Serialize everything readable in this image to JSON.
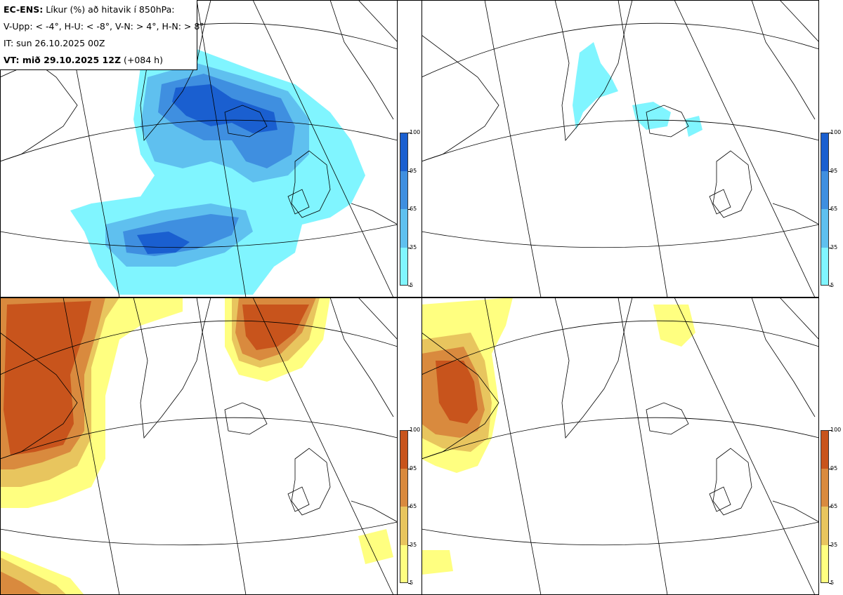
{
  "header": {
    "model": "EC-ENS:",
    "title": "Líkur (%) að hitavik í 850hPa:",
    "thresholds": "V-Upp: < -4°, H-U: < -8°, V-N: > 4°, H-N: > 8°",
    "init_time": "IT: sun 26.10.2025 00Z",
    "valid_label": "VT: mið 29.10.2025 12Z",
    "lead_time": "(+084 h)"
  },
  "colorbars": {
    "cold": {
      "labels": [
        "100",
        "95",
        "65",
        "35",
        "5"
      ],
      "colors": [
        "#1a5fd0",
        "#3f8fe0",
        "#5fc0ef",
        "#80f5ff"
      ]
    },
    "warm": {
      "labels": [
        "100",
        "95",
        "65",
        "35",
        "5"
      ],
      "colors": [
        "#c8541c",
        "#d98a3e",
        "#e8c55e",
        "#ffff80"
      ]
    }
  },
  "panels": [
    {
      "id": "top-left",
      "threshold": "V-Upp",
      "colorbar": "cold"
    },
    {
      "id": "top-right",
      "threshold": "H-U",
      "colorbar": "cold"
    },
    {
      "id": "bottom-left",
      "threshold": "V-N",
      "colorbar": "warm"
    },
    {
      "id": "bottom-right",
      "threshold": "H-N",
      "colorbar": "warm"
    }
  ]
}
